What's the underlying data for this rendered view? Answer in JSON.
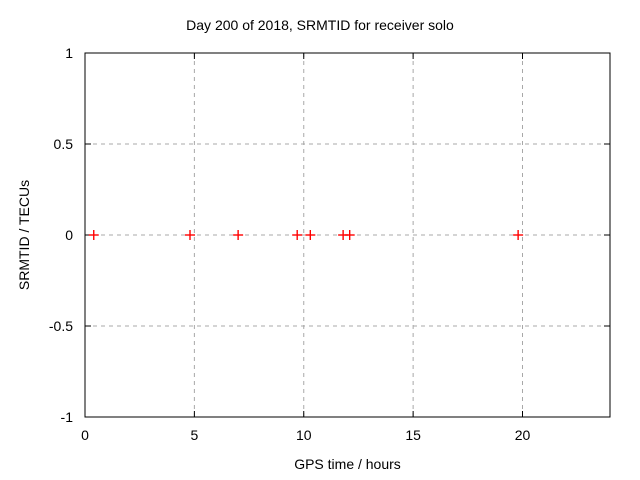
{
  "chart_data": {
    "type": "scatter",
    "title": "Day 200 of 2018, SRMTID for receiver solo",
    "xlabel": "GPS time / hours",
    "ylabel": "SRMTID / TECUs",
    "xlim": [
      0,
      24
    ],
    "ylim": [
      -1,
      1
    ],
    "xticks": [
      0,
      5,
      10,
      15,
      20
    ],
    "xtick_labels": [
      "0",
      "5",
      "10",
      "15",
      "20"
    ],
    "yticks": [
      -1,
      -0.5,
      0,
      0.5,
      1
    ],
    "ytick_labels": [
      "-1",
      "-0.5",
      "0",
      "0.5",
      "1"
    ],
    "grid": true,
    "grid_style": "dashed",
    "legend_position": "none",
    "marker": "plus",
    "marker_color": "#ff0000",
    "grid_color": "#a8a8a8",
    "border_color": "#000000",
    "background_color": "#ffffff",
    "series": [
      {
        "name": "SRMTID",
        "x": [
          0.4,
          4.8,
          7.0,
          9.7,
          10.3,
          11.8,
          12.1,
          19.8
        ],
        "y": [
          0,
          0,
          0,
          0,
          0,
          0,
          0,
          0
        ]
      }
    ]
  }
}
